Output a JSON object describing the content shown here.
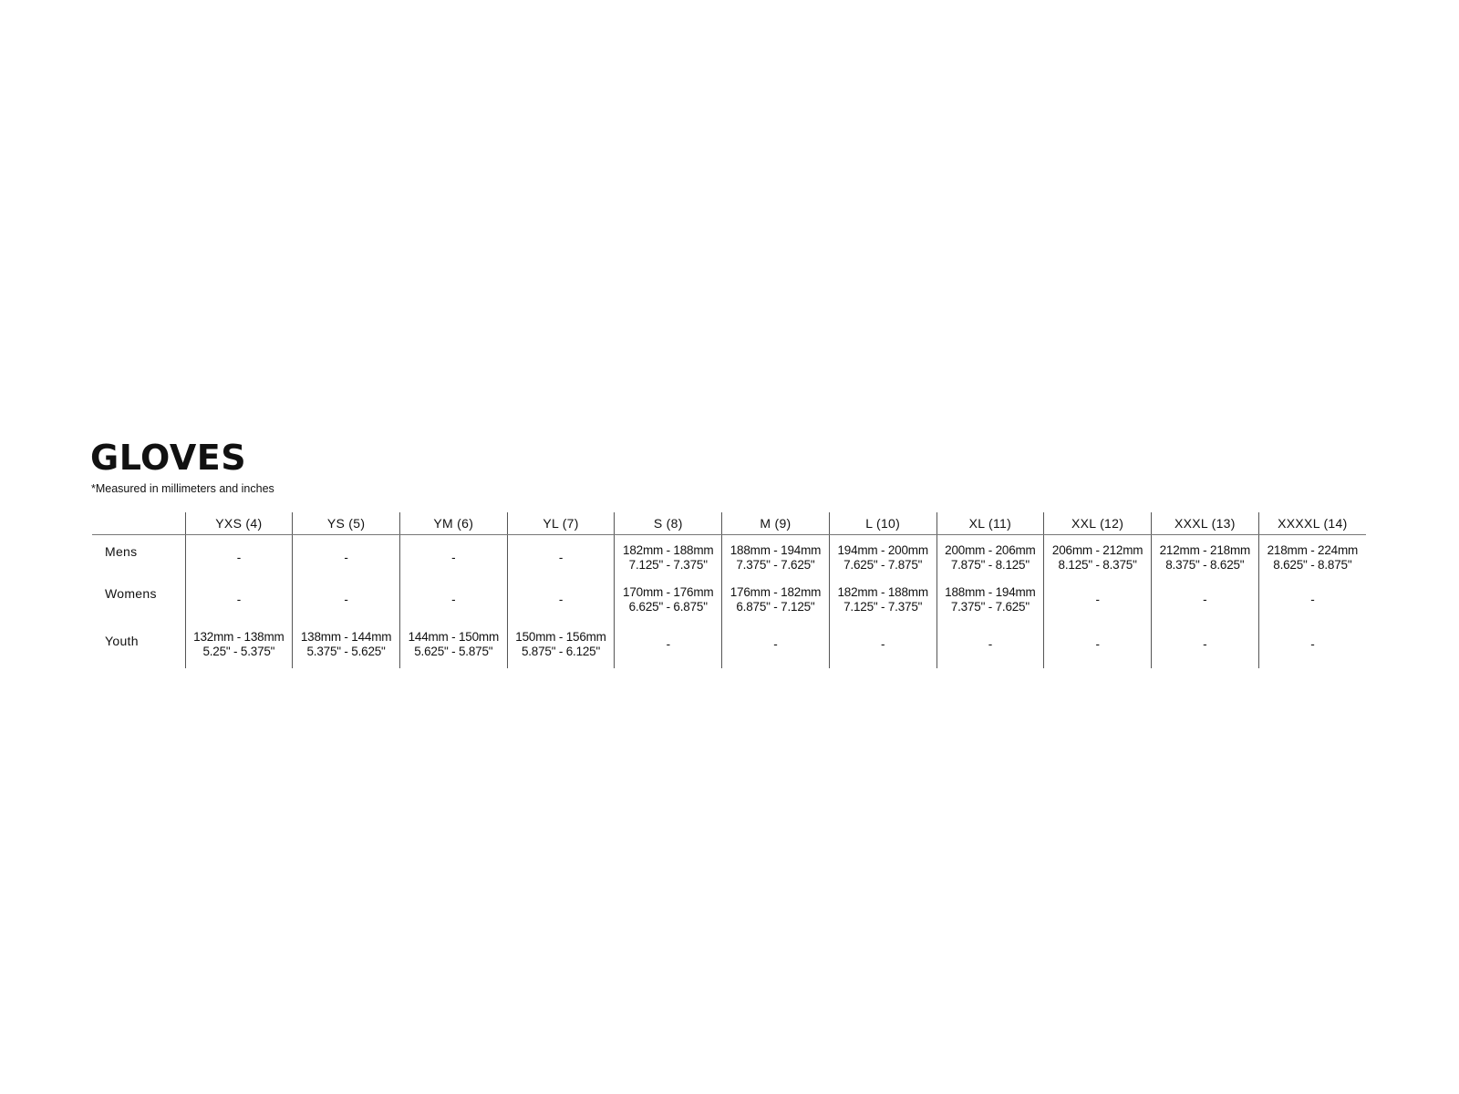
{
  "title": "GLOVES",
  "subtitle": "*Measured in millimeters and inches",
  "table": {
    "columns": [
      "YXS (4)",
      "YS (5)",
      "YM (6)",
      "YL (7)",
      "S (8)",
      "M (9)",
      "L (10)",
      "XL (11)",
      "XXL (12)",
      "XXXL (13)",
      "XXXXL (14)"
    ],
    "rows": [
      {
        "label": "Mens",
        "cells": [
          [
            "-"
          ],
          [
            "-"
          ],
          [
            "-"
          ],
          [
            "-"
          ],
          [
            "182mm - 188mm",
            "7.125\" - 7.375\""
          ],
          [
            "188mm - 194mm",
            "7.375\" - 7.625\""
          ],
          [
            "194mm - 200mm",
            "7.625\" - 7.875\""
          ],
          [
            "200mm - 206mm",
            "7.875\" - 8.125\""
          ],
          [
            "206mm - 212mm",
            "8.125\" - 8.375\""
          ],
          [
            "212mm - 218mm",
            "8.375\" - 8.625\""
          ],
          [
            "218mm - 224mm",
            "8.625\" - 8.875\""
          ]
        ]
      },
      {
        "label": "Womens",
        "cells": [
          [
            "-"
          ],
          [
            "-"
          ],
          [
            "-"
          ],
          [
            "-"
          ],
          [
            "170mm - 176mm",
            "6.625\" - 6.875\""
          ],
          [
            "176mm - 182mm",
            "6.875\" - 7.125\""
          ],
          [
            "182mm - 188mm",
            "7.125\" - 7.375\""
          ],
          [
            "188mm - 194mm",
            "7.375\" - 7.625\""
          ],
          [
            "-"
          ],
          [
            "-"
          ],
          [
            "-"
          ]
        ]
      },
      {
        "label": "Youth",
        "cells": [
          [
            "132mm - 138mm",
            "5.25\" - 5.375\""
          ],
          [
            "138mm - 144mm",
            "5.375\" - 5.625\""
          ],
          [
            "144mm - 150mm",
            "5.625\" - 5.875\""
          ],
          [
            "150mm - 156mm",
            "5.875\" - 6.125\""
          ],
          [
            "-"
          ],
          [
            "-"
          ],
          [
            "-"
          ],
          [
            "-"
          ],
          [
            "-"
          ],
          [
            "-"
          ],
          [
            "-"
          ]
        ]
      }
    ]
  }
}
